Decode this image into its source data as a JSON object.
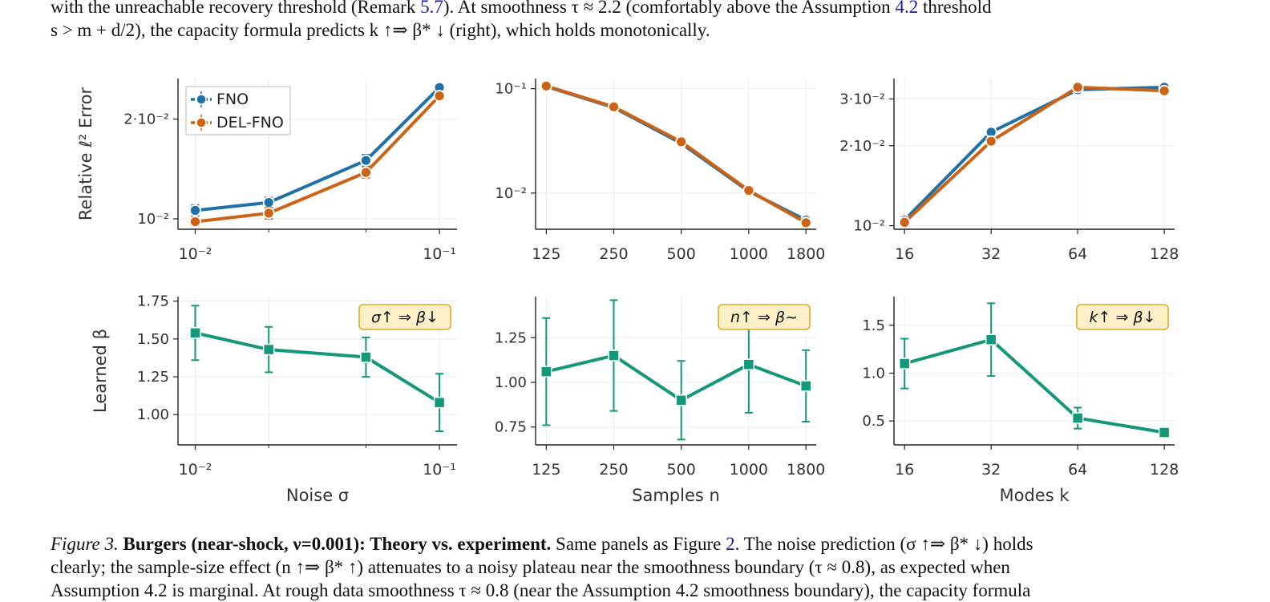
{
  "paragraph": {
    "line1_a": "with the unreachable recovery threshold (Remark ",
    "line1_ref": "5.7",
    "line1_b": ").  At smoothness τ ≈ 2.2 (comfortably above the Assumption ",
    "line1_ref2": "4.2",
    "line1_c": " threshold",
    "line2": "s > m + d/2), the capacity formula predicts k ↑⇒ β* ↓ (right), which holds monotonically."
  },
  "caption": {
    "label": "Figure 3.",
    "bold": "Burgers (near-shock, ν=0.001): Theory vs. experiment.",
    "line1_a": " Same panels as Figure ",
    "line1_ref": "2",
    "line1_b": ". The noise prediction (σ ↑⇒ β* ↓) holds",
    "line2": "clearly; the sample-size effect (n ↑⇒ β* ↑) attenuates to a noisy plateau near the smoothness boundary (τ ≈ 0.8), as expected when",
    "line3": "Assumption 4.2 is marginal. At rough data smoothness τ ≈ 0.8 (near the Assumption 4.2 smoothness boundary), the capacity formula"
  },
  "colors": {
    "fno": "#1f6fa8",
    "delfno": "#cc6214",
    "beta": "#14977a",
    "grid": "#ececec",
    "axis": "#222222",
    "boxFill": "#fdf0c8",
    "boxStroke": "#e0a92a"
  },
  "chart_data": [
    {
      "type": "line",
      "panel": "error-vs-noise",
      "ylabel": "Relative ℓ² Error",
      "xscale": "log",
      "yscale": "log",
      "xlim": [
        0.0085,
        0.118
      ],
      "ylim": [
        0.0093,
        0.0265
      ],
      "xticks": [
        {
          "v": 0.01,
          "label": "10⁻²"
        },
        {
          "v": 0.1,
          "label": "10⁻¹"
        }
      ],
      "xminor": [
        0.02,
        0.05
      ],
      "yticks": [
        {
          "v": 0.01,
          "label": "10⁻²"
        },
        {
          "v": 0.02,
          "label": "2·10⁻²"
        }
      ],
      "legend": {
        "position": "top-left",
        "entries": [
          "FNO",
          "DEL-FNO"
        ]
      },
      "x": [
        0.01,
        0.02,
        0.05,
        0.1
      ],
      "series": [
        {
          "name": "FNO",
          "color": "fno",
          "values": [
            0.0106,
            0.0112,
            0.015,
            0.0249
          ],
          "err": [
            0.0004,
            0.0004,
            0.0006,
            0.0005
          ]
        },
        {
          "name": "DEL-FNO",
          "color": "delfno",
          "values": [
            0.0098,
            0.0104,
            0.0138,
            0.0235
          ],
          "err": [
            0.0003,
            0.0004,
            0.0005,
            0.0004
          ]
        }
      ]
    },
    {
      "type": "line",
      "panel": "error-vs-samples",
      "xscale": "log",
      "yscale": "log",
      "xlim": [
        112,
        2000
      ],
      "ylim": [
        0.0045,
        0.125
      ],
      "xticks": [
        {
          "v": 125,
          "label": "125"
        },
        {
          "v": 250,
          "label": "250"
        },
        {
          "v": 500,
          "label": "500"
        },
        {
          "v": 1000,
          "label": "1000"
        },
        {
          "v": 1800,
          "label": "1800"
        }
      ],
      "yticks": [
        {
          "v": 0.1,
          "label": "10⁻¹"
        },
        {
          "v": 0.01,
          "label": "10⁻²"
        }
      ],
      "x": [
        125,
        250,
        500,
        1000,
        1800
      ],
      "series": [
        {
          "name": "FNO",
          "color": "fno",
          "values": [
            0.105,
            0.066,
            0.03,
            0.0104,
            0.0055
          ]
        },
        {
          "name": "DEL-FNO",
          "color": "delfno",
          "values": [
            0.106,
            0.067,
            0.031,
            0.0106,
            0.0052
          ]
        }
      ]
    },
    {
      "type": "line",
      "panel": "error-vs-modes",
      "xscale": "log",
      "yscale": "log",
      "xlim": [
        14.7,
        139
      ],
      "ylim": [
        0.0097,
        0.0358
      ],
      "xticks": [
        {
          "v": 16,
          "label": "16"
        },
        {
          "v": 32,
          "label": "32"
        },
        {
          "v": 64,
          "label": "64"
        },
        {
          "v": 128,
          "label": "128"
        }
      ],
      "yticks": [
        {
          "v": 0.01,
          "label": "10⁻²"
        },
        {
          "v": 0.02,
          "label": "2·10⁻²"
        },
        {
          "v": 0.03,
          "label": "3·10⁻²"
        }
      ],
      "x": [
        16,
        32,
        64,
        128
      ],
      "series": [
        {
          "name": "FNO",
          "color": "fno",
          "values": [
            0.0105,
            0.0225,
            0.0325,
            0.0332
          ]
        },
        {
          "name": "DEL-FNO",
          "color": "delfno",
          "values": [
            0.0103,
            0.0208,
            0.0332,
            0.0322
          ]
        }
      ]
    },
    {
      "type": "line",
      "panel": "beta-vs-noise",
      "ylabel": "Learned β",
      "xlabel": "Noise σ",
      "xscale": "log",
      "yscale": "linear",
      "xlim": [
        0.0085,
        0.118
      ],
      "ylim": [
        0.8,
        1.78
      ],
      "xticks": [
        {
          "v": 0.01,
          "label": "10⁻²"
        },
        {
          "v": 0.1,
          "label": "10⁻¹"
        }
      ],
      "xminor": [
        0.02,
        0.05
      ],
      "yticks": [
        {
          "v": 1.0,
          "label": "1.00"
        },
        {
          "v": 1.25,
          "label": "1.25"
        },
        {
          "v": 1.5,
          "label": "1.50"
        },
        {
          "v": 1.75,
          "label": "1.75"
        }
      ],
      "annotation": "σ↑  ⇒  β↓",
      "x": [
        0.01,
        0.02,
        0.05,
        0.1
      ],
      "series": [
        {
          "name": "β",
          "color": "beta",
          "values": [
            1.54,
            1.43,
            1.38,
            1.08
          ],
          "err": [
            0.18,
            0.15,
            0.13,
            0.19
          ]
        }
      ]
    },
    {
      "type": "line",
      "panel": "beta-vs-samples",
      "xlabel": "Samples n",
      "xscale": "log",
      "yscale": "linear",
      "xlim": [
        112,
        2000
      ],
      "ylim": [
        0.65,
        1.48
      ],
      "xticks": [
        {
          "v": 125,
          "label": "125"
        },
        {
          "v": 250,
          "label": "250"
        },
        {
          "v": 500,
          "label": "500"
        },
        {
          "v": 1000,
          "label": "1000"
        },
        {
          "v": 1800,
          "label": "1800"
        }
      ],
      "yticks": [
        {
          "v": 0.75,
          "label": "0.75"
        },
        {
          "v": 1.0,
          "label": "1.00"
        },
        {
          "v": 1.25,
          "label": "1.25"
        }
      ],
      "annotation": "n↑  ⇒  β~",
      "x": [
        125,
        250,
        500,
        1000,
        1800
      ],
      "series": [
        {
          "name": "β",
          "color": "beta",
          "values": [
            1.06,
            1.15,
            0.9,
            1.1,
            0.98
          ],
          "err": [
            0.3,
            0.31,
            0.22,
            0.27,
            0.2
          ]
        }
      ]
    },
    {
      "type": "line",
      "panel": "beta-vs-modes",
      "xlabel": "Modes k",
      "xscale": "log",
      "yscale": "linear",
      "xlim": [
        14.7,
        139
      ],
      "ylim": [
        0.25,
        1.8
      ],
      "xticks": [
        {
          "v": 16,
          "label": "16"
        },
        {
          "v": 32,
          "label": "32"
        },
        {
          "v": 64,
          "label": "64"
        },
        {
          "v": 128,
          "label": "128"
        }
      ],
      "yticks": [
        {
          "v": 0.5,
          "label": "0.5"
        },
        {
          "v": 1.0,
          "label": "1.0"
        },
        {
          "v": 1.5,
          "label": "1.5"
        }
      ],
      "annotation": "k↑  ⇒  β↓",
      "x": [
        16,
        32,
        64,
        128
      ],
      "series": [
        {
          "name": "β",
          "color": "beta",
          "values": [
            1.1,
            1.35,
            0.53,
            0.38
          ],
          "err": [
            0.26,
            0.38,
            0.11,
            0.05
          ]
        }
      ]
    }
  ]
}
